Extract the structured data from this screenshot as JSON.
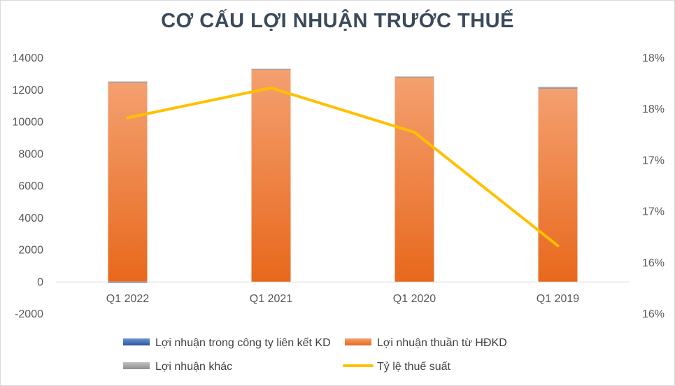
{
  "chart_data": {
    "type": "bar",
    "title": "CƠ CẤU LỢI NHUẬN TRƯỚC THUẾ",
    "categories": [
      "Q1 2022",
      "Q1 2021",
      "Q1 2020",
      "Q1 2019"
    ],
    "series": [
      {
        "name": "Lợi nhuận trong công ty liên kết KD",
        "kind": "stacked-bar",
        "axis": "left",
        "color": "#4472c4",
        "values": [
          -60,
          0,
          0,
          0
        ]
      },
      {
        "name": "Lợi nhuận thuần từ HĐKD",
        "kind": "stacked-bar",
        "axis": "left",
        "color": "#ed7d31",
        "values": [
          12450,
          13300,
          12830,
          12080
        ]
      },
      {
        "name": "Lợi nhuận khác",
        "kind": "stacked-bar",
        "axis": "left",
        "color": "#a5a5a5",
        "values": [
          90,
          30,
          20,
          130
        ]
      },
      {
        "name": "Tỷ lệ thuế suất",
        "kind": "line",
        "axis": "right",
        "color": "#ffc000",
        "values": [
          17.8,
          18.15,
          17.63,
          16.3
        ]
      }
    ],
    "y_left": {
      "min": -2000,
      "max": 14000,
      "ticks": [
        14000,
        12000,
        10000,
        8000,
        6000,
        4000,
        2000,
        0,
        -2000
      ],
      "tick_labels": [
        "14000",
        "12000",
        "10000",
        "8000",
        "6000",
        "4000",
        "2000",
        "0",
        "-2000"
      ]
    },
    "y_right": {
      "min": 15.5,
      "max": 18.5,
      "tick_labels": [
        "18%",
        "18%",
        "17%",
        "17%",
        "16%",
        "16%"
      ]
    },
    "grid": false,
    "legend_position": "bottom",
    "legend": [
      {
        "label": "Lợi nhuận trong công ty liên kết KD",
        "color": "#4472c4",
        "kind": "box"
      },
      {
        "label": "Lợi nhuận thuần từ HĐKD",
        "color": "#ed7d31",
        "kind": "box"
      },
      {
        "label": "Lợi nhuận khác",
        "color": "#a5a5a5",
        "kind": "box"
      },
      {
        "label": "Tỷ lệ thuế suất",
        "color": "#ffc000",
        "kind": "line"
      }
    ]
  }
}
